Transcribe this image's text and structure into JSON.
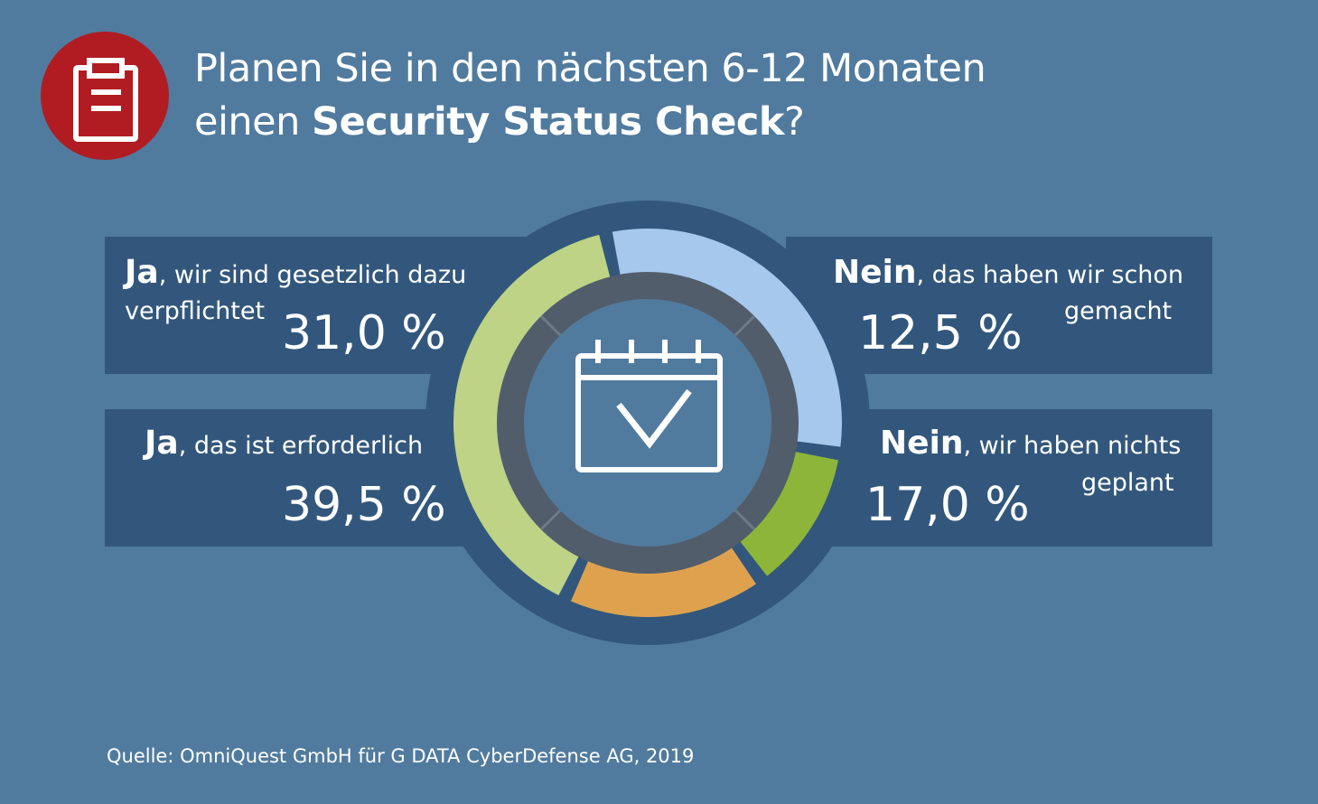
{
  "title": {
    "line1": "Planen Sie in den nächsten 6-12 Monaten",
    "line2_prefix": "einen ",
    "line2_bold": "Security Status Check",
    "line2_suffix": "?"
  },
  "header_icon": "clipboard-icon",
  "center_icon": "calendar-check-icon",
  "colors": {
    "background": "#517b9e",
    "panel": "#33577c",
    "header_circle": "#b01c22",
    "inner_ring": "#525d6c"
  },
  "chart_data": {
    "type": "pie",
    "title": "",
    "unit": "%",
    "series": [
      {
        "key": "ja_verpflichtet",
        "value": 31.0,
        "value_label": "31,0 %",
        "label_bold": "Ja",
        "label_rest_1": ", wir sind gesetzlich dazu",
        "label_rest_2": "verpflichtet",
        "color": "#a5c8ec"
      },
      {
        "key": "nein_gemacht",
        "value": 12.5,
        "value_label": "12,5 %",
        "label_bold": "Nein",
        "label_rest_1": ", das haben wir schon",
        "label_rest_2": "gemacht",
        "color": "#8db539"
      },
      {
        "key": "nein_nichts",
        "value": 17.0,
        "value_label": "17,0 %",
        "label_bold": "Nein",
        "label_rest_1": ", wir haben nichts",
        "label_rest_2": "geplant",
        "color": "#dea24f"
      },
      {
        "key": "ja_erforderlich",
        "value": 39.5,
        "value_label": "39,5 %",
        "label_bold": "Ja",
        "label_rest_1": ", das ist erforderlich",
        "label_rest_2": "",
        "color": "#bed385"
      }
    ]
  },
  "source": "Quelle: OmniQuest GmbH für G DATA CyberDefense AG, 2019"
}
